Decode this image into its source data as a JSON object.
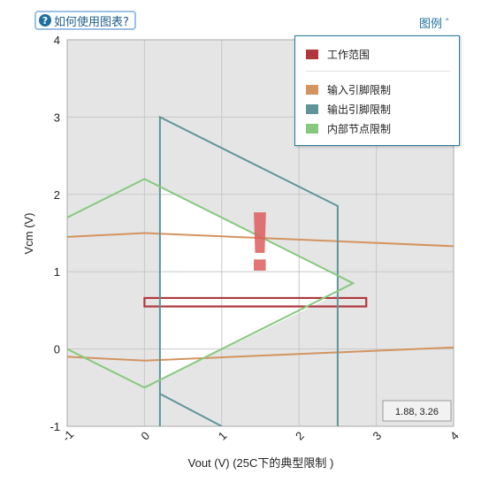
{
  "help": {
    "label": "如何使用图表?",
    "icon": "question-circle-icon"
  },
  "legend": {
    "toggle_label": "图例",
    "items": [
      {
        "label": "工作范围",
        "color": "#b0383c"
      },
      {
        "label": "输入引脚限制",
        "color": "#d3945f"
      },
      {
        "label": "输出引脚限制",
        "color": "#5f9598"
      },
      {
        "label": "内部节点限制",
        "color": "#86c97e"
      }
    ]
  },
  "coord_readout": "1.88, 3.26",
  "chart_data": {
    "type": "line",
    "xlabel": "Vout (V) (25C下的典型限制 )",
    "ylabel": "Vcm (V)",
    "xlim": [
      -1,
      4
    ],
    "ylim": [
      -1,
      4
    ],
    "x_ticks": [
      "-1",
      "0",
      "1",
      "2",
      "3",
      "4"
    ],
    "y_ticks": [
      "4",
      "3",
      "2",
      "1",
      "0",
      "-1"
    ],
    "grid": true,
    "legend_position": "top-right",
    "warning_symbol": "!",
    "series": [
      {
        "name": "工作范围",
        "color": "#b0383c",
        "closed": true,
        "points": [
          [
            0,
            0.55
          ],
          [
            2.87,
            0.55
          ],
          [
            2.87,
            0.66
          ],
          [
            0,
            0.66
          ]
        ]
      },
      {
        "name": "输入引脚限制",
        "color": "#d3945f",
        "lines": [
          [
            [
              -1,
              1.45
            ],
            [
              0,
              1.5
            ],
            [
              4,
              1.33
            ]
          ],
          [
            [
              -1,
              -0.1
            ],
            [
              0,
              -0.15
            ],
            [
              4,
              0.02
            ]
          ]
        ]
      },
      {
        "name": "输出引脚限制",
        "color": "#5f9598",
        "lines": [
          [
            [
              0.2,
              -1
            ],
            [
              0.2,
              3.0
            ],
            [
              2.5,
              1.85
            ],
            [
              2.5,
              -1
            ]
          ],
          [
            [
              0.2,
              -0.58
            ],
            [
              1.0,
              -1
            ]
          ]
        ]
      },
      {
        "name": "内部节点限制",
        "color": "#86c97e",
        "lines": [
          [
            [
              -1,
              1.7
            ],
            [
              0,
              2.2
            ],
            [
              2.7,
              0.85
            ],
            [
              0,
              -0.5
            ],
            [
              -1,
              0
            ]
          ]
        ]
      }
    ]
  }
}
